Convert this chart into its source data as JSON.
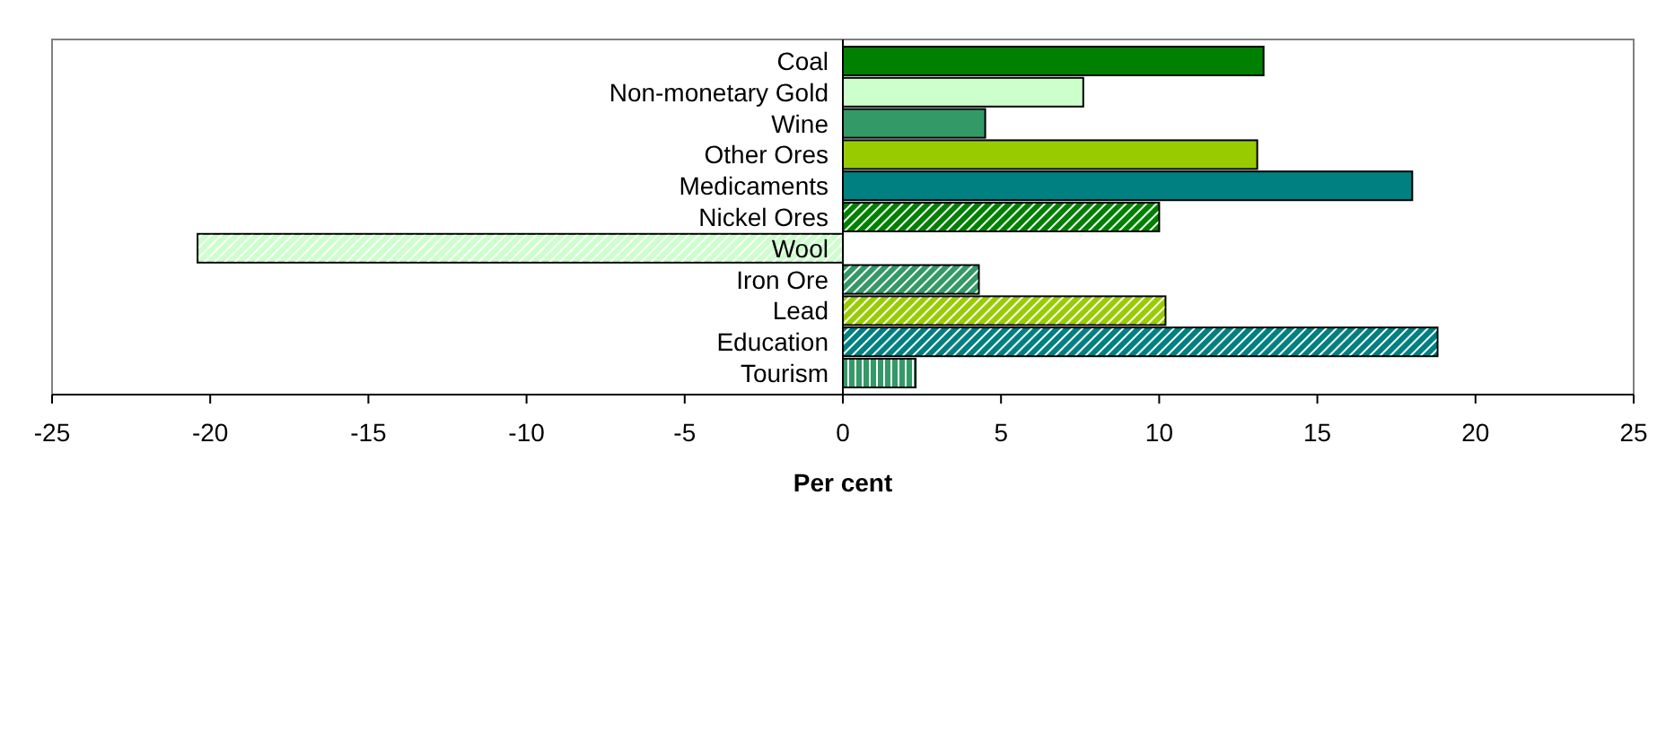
{
  "chart_data": {
    "type": "bar",
    "orientation": "horizontal",
    "xlabel": "Per cent",
    "categories": [
      "Coal",
      "Non-monetary Gold",
      "Wine",
      "Other Ores",
      "Medicaments",
      "Nickel Ores",
      "Wool",
      "Iron Ore",
      "Lead",
      "Education",
      "Tourism"
    ],
    "values": [
      13.3,
      7.6,
      4.5,
      13.1,
      18.0,
      10.0,
      -20.4,
      4.3,
      10.2,
      18.8,
      2.3
    ],
    "colors": [
      "#008000",
      "#ccffcc",
      "#339966",
      "#99cc00",
      "#008080",
      "#008000",
      "#ccffcc",
      "#339966",
      "#99cc00",
      "#008080",
      "#339966"
    ],
    "xlim": [
      -25,
      25
    ],
    "xticks": [
      -25,
      -20,
      -15,
      -10,
      -5,
      0,
      5,
      10,
      15,
      20,
      25
    ],
    "grid": false
  }
}
